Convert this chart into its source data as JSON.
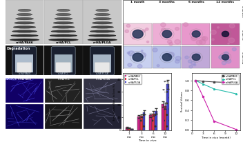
{
  "bar_categories": [
    "1 month",
    "3 months",
    "6 months",
    "12 months"
  ],
  "bar_pa66": [
    2.0,
    10.5,
    11.5,
    20.5
  ],
  "bar_pcl": [
    1.5,
    11.2,
    13.0,
    19.0
  ],
  "bar_plga": [
    0.8,
    14.0,
    15.0,
    36.0
  ],
  "bar_pa66_err": [
    0.4,
    1.2,
    1.5,
    2.0
  ],
  "bar_pcl_err": [
    0.3,
    1.0,
    1.8,
    2.5
  ],
  "bar_plga_err": [
    0.2,
    1.5,
    2.2,
    3.5
  ],
  "line_x": [
    1,
    3,
    6,
    12
  ],
  "line_pa66": [
    1.0,
    0.985,
    0.97,
    0.955
  ],
  "line_pcl": [
    1.0,
    0.93,
    0.83,
    0.73
  ],
  "line_plga": [
    1.0,
    0.68,
    0.18,
    0.01
  ],
  "color_pa66": "#cc2288",
  "color_pcl": "#dd3344",
  "color_plga": "#4444cc",
  "color_pa66_line": "#444444",
  "color_pcl_line": "#22bbaa",
  "color_plga_line": "#cc22aa",
  "bar_ylabel": "Bone Volume/Bone In Exist(%)",
  "bar_xlabel": "Time in vivo",
  "line_ylabel": "Residual Volume",
  "line_xlabel": "Time in vivo (month)",
  "scaffold_names": [
    "n-HA/PA66",
    "n-HA/PCL",
    "n-HA/PLGA"
  ],
  "time_labels": [
    "1 month",
    "3 months",
    "6 months",
    "12 months"
  ],
  "ct_bg": "#c8c8c8",
  "ct_dark": "#222222",
  "ct_mid": "#888888",
  "degrad_bg": "#111111",
  "tube_colors": [
    "#c8d8e8",
    "#b8ccd8",
    "#c0d0e0"
  ],
  "scaffold_white": "#e8e8e8",
  "micro_bg": "#050510",
  "micro_blue_dark": "#0000aa",
  "micro_blue_bright": "#6666ff",
  "micro_grey": "#666688",
  "histo_pink_light": "#f0d0e0",
  "histo_pink_mid": "#e0a0c8",
  "histo_pink_dark": "#c06090",
  "histo_blue_light": "#d0d8f8",
  "histo_purple": "#b090c0",
  "histo_dot": "#223355",
  "bg_color": "#ffffff",
  "border_color": "#888888",
  "ylim_bar": [
    0,
    45
  ],
  "yticks_bar": [
    0,
    10,
    20,
    30,
    40
  ],
  "xlim_line": [
    0,
    13
  ],
  "ylim_line": [
    0,
    1.15
  ],
  "yticks_line": [
    0.0,
    0.2,
    0.4,
    0.6,
    0.8,
    1.0
  ],
  "sig_label1": "***",
  "sig_label2": "**",
  "sig_label3": "ns"
}
